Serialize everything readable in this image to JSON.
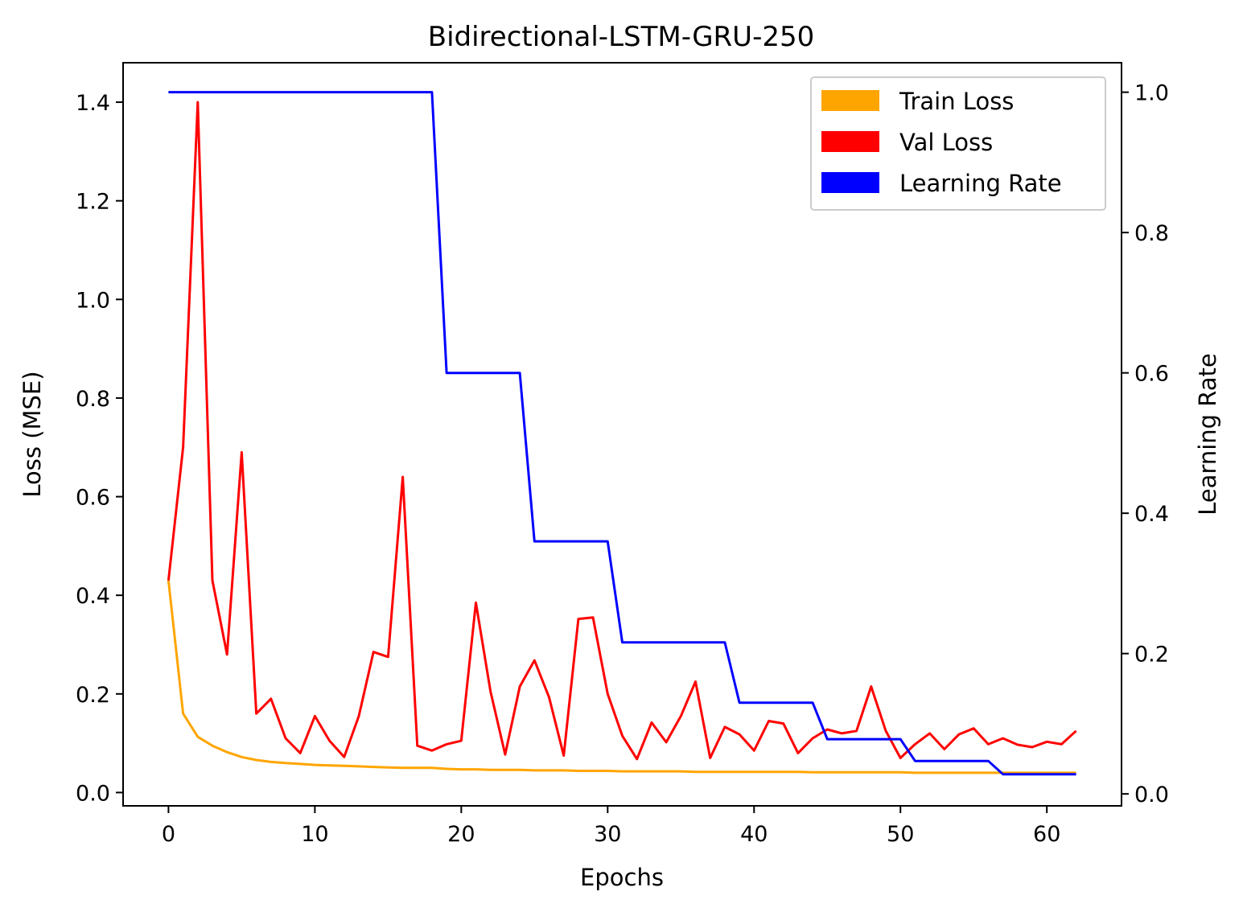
{
  "chart_data": {
    "type": "line",
    "title": "Bidirectional-LSTM-GRU-250",
    "xlabel": "Epochs",
    "ylabel": "Loss (MSE)",
    "y2label": "Learning Rate",
    "xlim": [
      -3.1,
      65.1
    ],
    "ylim": [
      -0.027,
      1.48
    ],
    "y2lim": [
      -0.017,
      1.042
    ],
    "xticks": [
      0,
      10,
      20,
      30,
      40,
      50,
      60
    ],
    "xtick_labels": [
      "0",
      "10",
      "20",
      "30",
      "40",
      "50",
      "60"
    ],
    "yticks": [
      0.0,
      0.2,
      0.4,
      0.6,
      0.8,
      1.0,
      1.2,
      1.4
    ],
    "ytick_labels": [
      "0.0",
      "0.2",
      "0.4",
      "0.6",
      "0.8",
      "1.0",
      "1.2",
      "1.4"
    ],
    "y2ticks": [
      0.0,
      0.2,
      0.4,
      0.6,
      0.8,
      1.0
    ],
    "y2tick_labels": [
      "0.0",
      "0.2",
      "0.4",
      "0.6",
      "0.8",
      "1.0"
    ],
    "grid": false,
    "legend_position": "top-right",
    "x": [
      0,
      1,
      2,
      3,
      4,
      5,
      6,
      7,
      8,
      9,
      10,
      11,
      12,
      13,
      14,
      15,
      16,
      17,
      18,
      19,
      20,
      21,
      22,
      23,
      24,
      25,
      26,
      27,
      28,
      29,
      30,
      31,
      32,
      33,
      34,
      35,
      36,
      37,
      38,
      39,
      40,
      41,
      42,
      43,
      44,
      45,
      46,
      47,
      48,
      49,
      50,
      51,
      52,
      53,
      54,
      55,
      56,
      57,
      58,
      59,
      60,
      61,
      62
    ],
    "series": [
      {
        "name": "Train Loss",
        "color": "#FFA500",
        "axis": "left",
        "values": [
          0.43,
          0.16,
          0.113,
          0.095,
          0.082,
          0.072,
          0.066,
          0.062,
          0.06,
          0.058,
          0.056,
          0.055,
          0.054,
          0.053,
          0.052,
          0.051,
          0.05,
          0.05,
          0.05,
          0.048,
          0.047,
          0.047,
          0.046,
          0.046,
          0.046,
          0.045,
          0.045,
          0.045,
          0.044,
          0.044,
          0.044,
          0.043,
          0.043,
          0.043,
          0.043,
          0.043,
          0.042,
          0.042,
          0.042,
          0.042,
          0.042,
          0.042,
          0.042,
          0.042,
          0.041,
          0.041,
          0.041,
          0.041,
          0.041,
          0.041,
          0.041,
          0.04,
          0.04,
          0.04,
          0.04,
          0.04,
          0.04,
          0.04,
          0.04,
          0.04,
          0.04,
          0.04,
          0.04
        ]
      },
      {
        "name": "Val Loss",
        "color": "#FF0000",
        "axis": "left",
        "values": [
          0.43,
          0.7,
          1.4,
          0.43,
          0.28,
          0.69,
          0.16,
          0.19,
          0.11,
          0.08,
          0.155,
          0.105,
          0.072,
          0.155,
          0.285,
          0.275,
          0.64,
          0.095,
          0.085,
          0.098,
          0.105,
          0.385,
          0.205,
          0.077,
          0.215,
          0.268,
          0.193,
          0.075,
          0.352,
          0.355,
          0.2,
          0.115,
          0.068,
          0.142,
          0.102,
          0.155,
          0.225,
          0.07,
          0.133,
          0.118,
          0.085,
          0.145,
          0.14,
          0.08,
          0.11,
          0.128,
          0.12,
          0.125,
          0.215,
          0.125,
          0.07,
          0.098,
          0.12,
          0.088,
          0.118,
          0.13,
          0.098,
          0.11,
          0.097,
          0.092,
          0.103,
          0.098,
          0.125
        ]
      },
      {
        "name": "Learning Rate",
        "color": "#0000FF",
        "axis": "right",
        "values": [
          1.0,
          1.0,
          1.0,
          1.0,
          1.0,
          1.0,
          1.0,
          1.0,
          1.0,
          1.0,
          1.0,
          1.0,
          1.0,
          1.0,
          1.0,
          1.0,
          1.0,
          1.0,
          1.0,
          0.6,
          0.6,
          0.6,
          0.6,
          0.6,
          0.6,
          0.36,
          0.36,
          0.36,
          0.36,
          0.36,
          0.36,
          0.216,
          0.216,
          0.216,
          0.216,
          0.216,
          0.216,
          0.216,
          0.216,
          0.13,
          0.13,
          0.13,
          0.13,
          0.13,
          0.13,
          0.078,
          0.078,
          0.078,
          0.078,
          0.078,
          0.078,
          0.047,
          0.047,
          0.047,
          0.047,
          0.047,
          0.047,
          0.028,
          0.028,
          0.028,
          0.028,
          0.028,
          0.028
        ]
      }
    ]
  }
}
